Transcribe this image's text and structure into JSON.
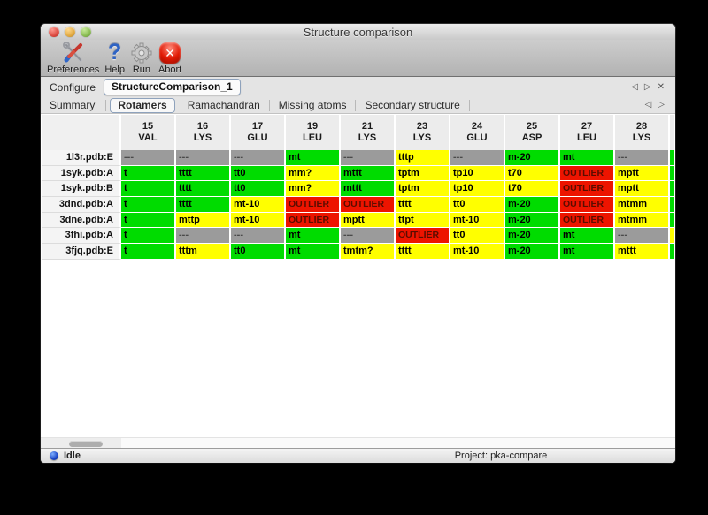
{
  "window": {
    "title": "Structure comparison"
  },
  "toolbar": {
    "buttons": [
      {
        "label": "Preferences",
        "icon": "tools-icon"
      },
      {
        "label": "Help",
        "icon": "question-icon"
      },
      {
        "label": "Run",
        "icon": "gear-icon"
      },
      {
        "label": "Abort",
        "icon": "abort-icon"
      }
    ]
  },
  "configure": {
    "label": "Configure",
    "active": "StructureComparison_1"
  },
  "nav": {
    "prev": "◁",
    "next": "▷",
    "close": "✕"
  },
  "tabs": {
    "items": [
      "Summary",
      "Rotamers",
      "Ramachandran",
      "Missing atoms",
      "Secondary structure"
    ],
    "selected": "Rotamers"
  },
  "colors": {
    "green": "#00dc00",
    "yellow": "#ffff00",
    "red": "#ed1400",
    "gray": "#9b9b9b",
    "text_default": "#000000",
    "text_on_red": "#5a0d00",
    "text_on_gray": "#4a4a4a"
  },
  "table": {
    "columns": [
      {
        "num": "15",
        "res": "VAL"
      },
      {
        "num": "16",
        "res": "LYS"
      },
      {
        "num": "17",
        "res": "GLU"
      },
      {
        "num": "19",
        "res": "LEU"
      },
      {
        "num": "21",
        "res": "LYS"
      },
      {
        "num": "23",
        "res": "LYS"
      },
      {
        "num": "24",
        "res": "GLU"
      },
      {
        "num": "25",
        "res": "ASP"
      },
      {
        "num": "27",
        "res": "LEU"
      },
      {
        "num": "28",
        "res": "LYS"
      }
    ],
    "rows": [
      {
        "label": "1l3r.pdb:E",
        "partial": "green",
        "cells": [
          {
            "text": "---",
            "status": "gray"
          },
          {
            "text": "---",
            "status": "gray"
          },
          {
            "text": "---",
            "status": "gray"
          },
          {
            "text": "mt",
            "status": "green"
          },
          {
            "text": "---",
            "status": "gray"
          },
          {
            "text": "tttp",
            "status": "yellow"
          },
          {
            "text": "---",
            "status": "gray"
          },
          {
            "text": "m-20",
            "status": "green"
          },
          {
            "text": "mt",
            "status": "green"
          },
          {
            "text": "---",
            "status": "gray"
          }
        ]
      },
      {
        "label": "1syk.pdb:A",
        "partial": "green",
        "cells": [
          {
            "text": "t",
            "status": "green",
            "clipped": true
          },
          {
            "text": "tttt",
            "status": "green"
          },
          {
            "text": "tt0",
            "status": "green"
          },
          {
            "text": "mm?",
            "status": "yellow"
          },
          {
            "text": "mttt",
            "status": "green"
          },
          {
            "text": "tptm",
            "status": "yellow"
          },
          {
            "text": "tp10",
            "status": "yellow"
          },
          {
            "text": "t70",
            "status": "yellow"
          },
          {
            "text": "OUTLIER",
            "status": "red"
          },
          {
            "text": "mptt",
            "status": "yellow"
          }
        ]
      },
      {
        "label": "1syk.pdb:B",
        "partial": "green",
        "cells": [
          {
            "text": "t",
            "status": "green",
            "clipped": true
          },
          {
            "text": "tttt",
            "status": "green"
          },
          {
            "text": "tt0",
            "status": "green"
          },
          {
            "text": "mm?",
            "status": "yellow"
          },
          {
            "text": "mttt",
            "status": "green"
          },
          {
            "text": "tptm",
            "status": "yellow"
          },
          {
            "text": "tp10",
            "status": "yellow"
          },
          {
            "text": "t70",
            "status": "yellow"
          },
          {
            "text": "OUTLIER",
            "status": "red"
          },
          {
            "text": "mptt",
            "status": "yellow"
          }
        ]
      },
      {
        "label": "3dnd.pdb:A",
        "partial": "green",
        "cells": [
          {
            "text": "t",
            "status": "green",
            "clipped": true
          },
          {
            "text": "tttt",
            "status": "green"
          },
          {
            "text": "mt-10",
            "status": "yellow"
          },
          {
            "text": "OUTLIER",
            "status": "red"
          },
          {
            "text": "OUTLIER",
            "status": "red"
          },
          {
            "text": "tttt",
            "status": "yellow"
          },
          {
            "text": "tt0",
            "status": "yellow"
          },
          {
            "text": "m-20",
            "status": "green"
          },
          {
            "text": "OUTLIER",
            "status": "red"
          },
          {
            "text": "mtmm",
            "status": "yellow"
          }
        ]
      },
      {
        "label": "3dne.pdb:A",
        "partial": "green",
        "cells": [
          {
            "text": "t",
            "status": "green",
            "clipped": true
          },
          {
            "text": "mttp",
            "status": "yellow"
          },
          {
            "text": "mt-10",
            "status": "yellow"
          },
          {
            "text": "OUTLIER",
            "status": "red"
          },
          {
            "text": "mptt",
            "status": "yellow"
          },
          {
            "text": "ttpt",
            "status": "yellow"
          },
          {
            "text": "mt-10",
            "status": "yellow"
          },
          {
            "text": "m-20",
            "status": "green"
          },
          {
            "text": "OUTLIER",
            "status": "red"
          },
          {
            "text": "mtmm",
            "status": "yellow"
          }
        ]
      },
      {
        "label": "3fhi.pdb:A",
        "partial": "yellow",
        "cells": [
          {
            "text": "t",
            "status": "green",
            "clipped": true
          },
          {
            "text": "---",
            "status": "gray"
          },
          {
            "text": "---",
            "status": "gray"
          },
          {
            "text": "mt",
            "status": "green"
          },
          {
            "text": "---",
            "status": "gray"
          },
          {
            "text": "OUTLIER",
            "status": "red"
          },
          {
            "text": "tt0",
            "status": "yellow"
          },
          {
            "text": "m-20",
            "status": "green"
          },
          {
            "text": "mt",
            "status": "green"
          },
          {
            "text": "---",
            "status": "gray"
          }
        ]
      },
      {
        "label": "3fjq.pdb:E",
        "partial": "green",
        "cells": [
          {
            "text": "t",
            "status": "green",
            "clipped": true
          },
          {
            "text": "tttm",
            "status": "yellow"
          },
          {
            "text": "tt0",
            "status": "green"
          },
          {
            "text": "mt",
            "status": "green"
          },
          {
            "text": "tmtm?",
            "status": "yellow"
          },
          {
            "text": "tttt",
            "status": "yellow"
          },
          {
            "text": "mt-10",
            "status": "yellow"
          },
          {
            "text": "m-20",
            "status": "green"
          },
          {
            "text": "mt",
            "status": "green"
          },
          {
            "text": "mttt",
            "status": "yellow"
          }
        ]
      }
    ]
  },
  "statusbar": {
    "state": "Idle",
    "project": "Project: pka-compare"
  }
}
